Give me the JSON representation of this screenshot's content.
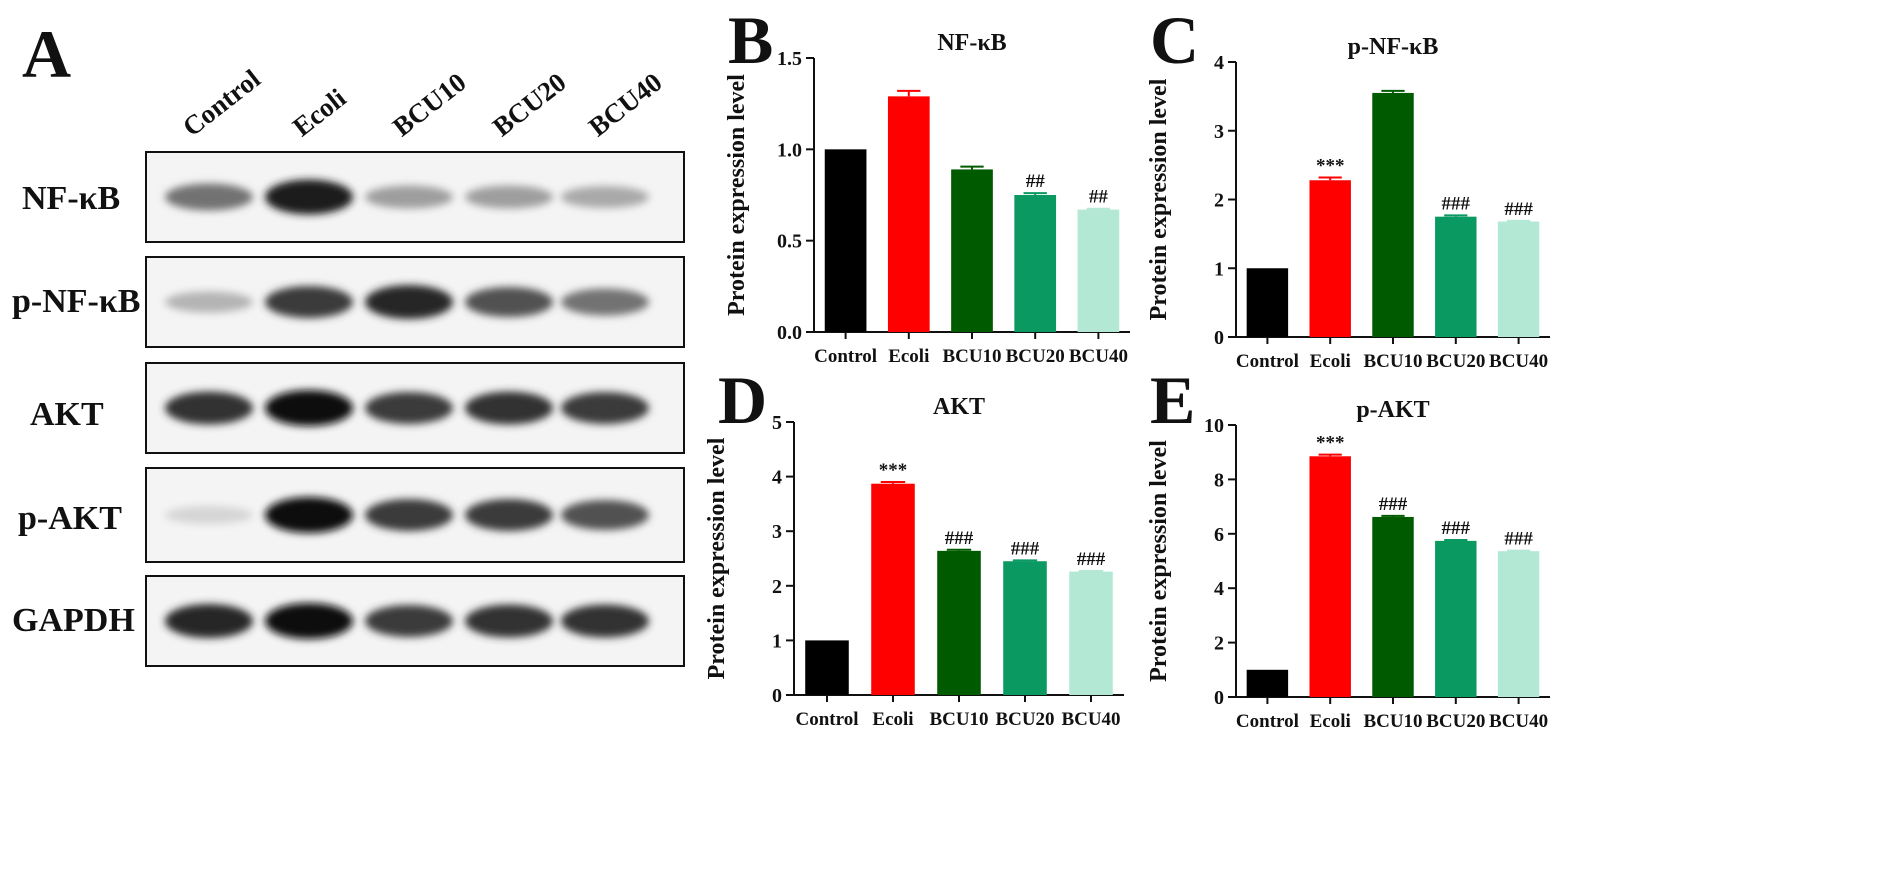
{
  "blot": {
    "letter": "A",
    "lanes": [
      "Control",
      "Ecoli",
      "BCU10",
      "BCU20",
      "BCU40"
    ],
    "rows": [
      {
        "label": "NF-κB",
        "intensity": [
          0.55,
          0.95,
          0.35,
          0.35,
          0.3
        ]
      },
      {
        "label": "p-NF-κB",
        "intensity": [
          0.25,
          0.8,
          0.9,
          0.7,
          0.55
        ]
      },
      {
        "label": "AKT",
        "intensity": [
          0.85,
          1.0,
          0.8,
          0.85,
          0.8
        ]
      },
      {
        "label": "p-AKT",
        "intensity": [
          0.1,
          1.0,
          0.8,
          0.8,
          0.7
        ]
      },
      {
        "label": "GAPDH",
        "intensity": [
          0.9,
          1.0,
          0.8,
          0.85,
          0.85
        ]
      }
    ]
  },
  "chart_data": [
    {
      "letter": "B",
      "type": "bar",
      "title": "NF-κB",
      "ylabel": "Protein expression level",
      "xlabel": "",
      "categories": [
        "Control",
        "Ecoli",
        "BCU10",
        "BCU20",
        "BCU40"
      ],
      "values": [
        1.0,
        1.29,
        0.89,
        0.75,
        0.67
      ],
      "errors": [
        0,
        0.03,
        0.015,
        0.01,
        0.005
      ],
      "annotations": [
        "",
        "",
        "",
        "##",
        "##"
      ],
      "colors": [
        "#000000",
        "#ff0000",
        "#005a00",
        "#0a9960",
        "#b3e8d4"
      ],
      "ylim": [
        0,
        1.5
      ],
      "yticks": [
        0.0,
        0.5,
        1.0,
        1.5
      ],
      "ytick_labels": [
        "0.0",
        "0.5",
        "1.0",
        "1.5"
      ]
    },
    {
      "letter": "C",
      "type": "bar",
      "title": "p-NF-κB",
      "ylabel": "Protein expression level",
      "xlabel": "",
      "categories": [
        "Control",
        "Ecoli",
        "BCU10",
        "BCU20",
        "BCU40"
      ],
      "values": [
        1.0,
        2.28,
        3.55,
        1.75,
        1.68
      ],
      "errors": [
        0,
        0.04,
        0.03,
        0.02,
        0.01
      ],
      "annotations": [
        "",
        "***",
        "",
        "###",
        "###"
      ],
      "colors": [
        "#000000",
        "#ff0000",
        "#005a00",
        "#0a9960",
        "#b3e8d4"
      ],
      "ylim": [
        0,
        4
      ],
      "yticks": [
        0,
        1,
        2,
        3,
        4
      ],
      "ytick_labels": [
        "0",
        "1",
        "2",
        "3",
        "4"
      ]
    },
    {
      "letter": "D",
      "type": "bar",
      "title": "AKT",
      "ylabel": "Protein expression level",
      "xlabel": "",
      "categories": [
        "Control",
        "Ecoli",
        "BCU10",
        "BCU20",
        "BCU40"
      ],
      "values": [
        1.0,
        3.87,
        2.64,
        2.45,
        2.26
      ],
      "errors": [
        0,
        0.03,
        0.02,
        0.015,
        0.01
      ],
      "annotations": [
        "",
        "***",
        "###",
        "###",
        "###"
      ],
      "colors": [
        "#000000",
        "#ff0000",
        "#005a00",
        "#0a9960",
        "#b3e8d4"
      ],
      "ylim": [
        0,
        5
      ],
      "yticks": [
        0,
        1,
        2,
        3,
        4,
        5
      ],
      "ytick_labels": [
        "0",
        "1",
        "2",
        "3",
        "4",
        "5"
      ]
    },
    {
      "letter": "E",
      "type": "bar",
      "title": "p-AKT",
      "ylabel": "Protein expression level",
      "xlabel": "",
      "categories": [
        "Control",
        "Ecoli",
        "BCU10",
        "BCU20",
        "BCU40"
      ],
      "values": [
        1.0,
        8.85,
        6.62,
        5.74,
        5.36
      ],
      "errors": [
        0,
        0.06,
        0.04,
        0.03,
        0.02
      ],
      "annotations": [
        "",
        "***",
        "###",
        "###",
        "###"
      ],
      "colors": [
        "#000000",
        "#ff0000",
        "#005a00",
        "#0a9960",
        "#b3e8d4"
      ],
      "ylim": [
        0,
        10
      ],
      "yticks": [
        0,
        2,
        4,
        6,
        8,
        10
      ],
      "ytick_labels": [
        "0",
        "2",
        "4",
        "6",
        "8",
        "10"
      ]
    }
  ]
}
